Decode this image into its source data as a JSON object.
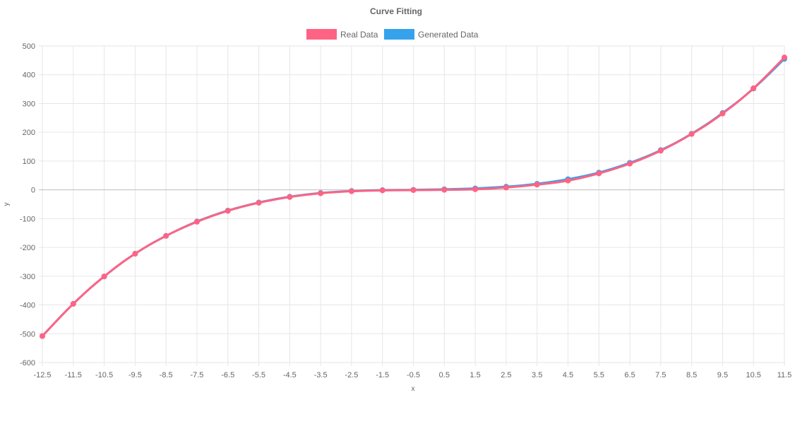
{
  "chart_data": {
    "type": "line",
    "title": "Curve Fitting",
    "xlabel": "x",
    "ylabel": "y",
    "x": [
      -12.5,
      -11.5,
      -10.5,
      -9.5,
      -8.5,
      -7.5,
      -6.5,
      -5.5,
      -4.5,
      -3.5,
      -2.5,
      -1.5,
      -0.5,
      0.5,
      1.5,
      2.5,
      3.5,
      4.5,
      5.5,
      6.5,
      7.5,
      8.5,
      9.5,
      10.5,
      11.5
    ],
    "ylim": [
      -600,
      500
    ],
    "yticks": [
      500,
      400,
      300,
      200,
      100,
      0,
      -100,
      -200,
      -300,
      -400,
      -500,
      -600
    ],
    "grid": true,
    "legend_position": "top",
    "series": [
      {
        "name": "Real Data",
        "color": "#ff6384",
        "values": [
          -508,
          -396,
          -301,
          -222,
          -160,
          -111,
          -73,
          -45,
          -25,
          -12,
          -5,
          -2,
          -1,
          0,
          2,
          8,
          18,
          32,
          57,
          91,
          136,
          194,
          265,
          353,
          460
        ]
      },
      {
        "name": "Generated Data",
        "color": "#36a2eb",
        "values": [
          -508,
          -396,
          -301,
          -222,
          -160,
          -110,
          -72,
          -44,
          -24,
          -11,
          -4,
          -1,
          0,
          2,
          5,
          11,
          21,
          37,
          60,
          94,
          138,
          195,
          267,
          352,
          455
        ]
      }
    ]
  }
}
